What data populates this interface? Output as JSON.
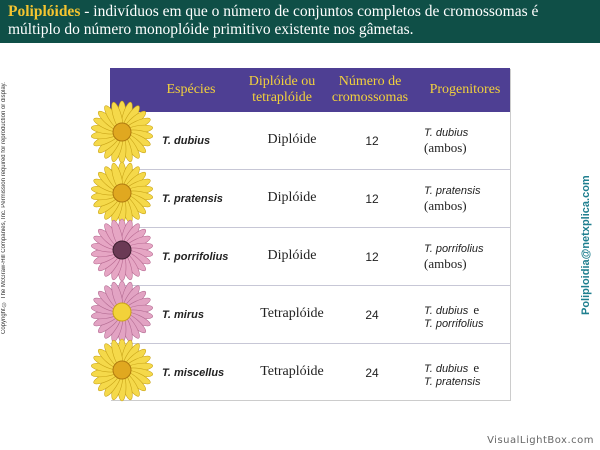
{
  "header": {
    "title": "Poliplóides",
    "text": " - indivíduos em que o número de conjuntos completos de cromossomas é múltiplo do número monoplóide primitivo existente nos gâmetas."
  },
  "copyright": "Copyright © The McGraw-Hill Companies, Inc. Permission required for reproduction or display.",
  "email": "Poliploidia@netxplica.com",
  "table": {
    "headers": {
      "species": "Espécies",
      "ploidy_l1": "Diplóide ou",
      "ploidy_l2": "tetraplóide",
      "chrom_l1": "Número de",
      "chrom_l2": "cromossomas",
      "prog": "Progenitores"
    },
    "rows": [
      {
        "species": "T. dubius",
        "ploidy": "Diplóide",
        "chromosomes": "12",
        "prog_a": "T. dubius",
        "prog_b": "(ambos)",
        "prog_b_italic": false,
        "flower": "yellow"
      },
      {
        "species": "T. pratensis",
        "ploidy": "Diplóide",
        "chromosomes": "12",
        "prog_a": "T. pratensis",
        "prog_b": "(ambos)",
        "prog_b_italic": false,
        "flower": "yellow"
      },
      {
        "species": "T. porrifolius",
        "ploidy": "Diplóide",
        "chromosomes": "12",
        "prog_a": "T. porrifolius",
        "prog_b": "(ambos)",
        "prog_b_italic": false,
        "flower": "pink"
      },
      {
        "species": "T. mirus",
        "ploidy": "Tetraplóide",
        "chromosomes": "24",
        "prog_a": "T. dubius",
        "prog_joiner": "e",
        "prog_b": "T. porrifolius",
        "prog_b_italic": true,
        "flower": "pink-yellow"
      },
      {
        "species": "T. miscellus",
        "ploidy": "Tetraplóide",
        "chromosomes": "24",
        "prog_a": "T. dubius",
        "prog_joiner": "e",
        "prog_b": "T. pratensis",
        "prog_b_italic": true,
        "flower": "yellow"
      }
    ]
  },
  "watermark": "VisualLightBox.com",
  "colors": {
    "header_bg": "#0f4f47",
    "title": "#f4c430",
    "table_header_bg": "#4e3f93",
    "table_header_text": "#f2d13c",
    "email": "#1f7f8f"
  }
}
